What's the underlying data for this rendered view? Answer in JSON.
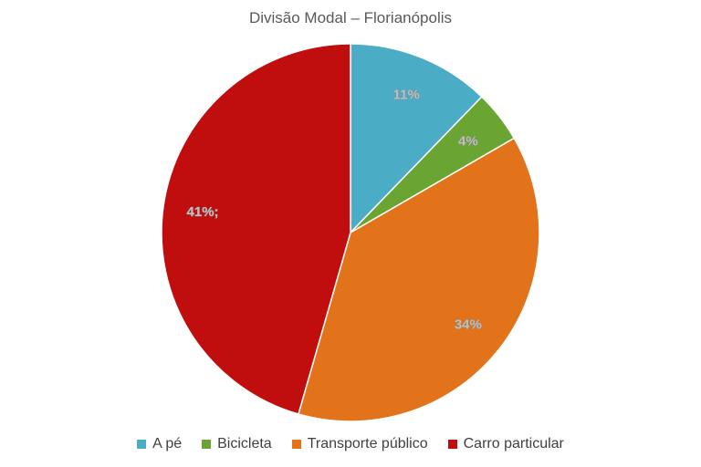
{
  "chart_data": {
    "type": "pie",
    "title": "Divisão Modal – Florianópolis",
    "legend_position": "bottom",
    "slices": [
      {
        "name": "A pé",
        "value": 11,
        "label": "11%",
        "color": "#4bacc6"
      },
      {
        "name": "Bicicleta",
        "value": 4,
        "label": "4%",
        "color": "#6aa533"
      },
      {
        "name": "Transporte público",
        "value": 34,
        "label": "34%",
        "color": "#e2731a"
      },
      {
        "name": "Carro particular",
        "value": 41,
        "label": "41%;",
        "color": "#c00d0d"
      }
    ]
  }
}
